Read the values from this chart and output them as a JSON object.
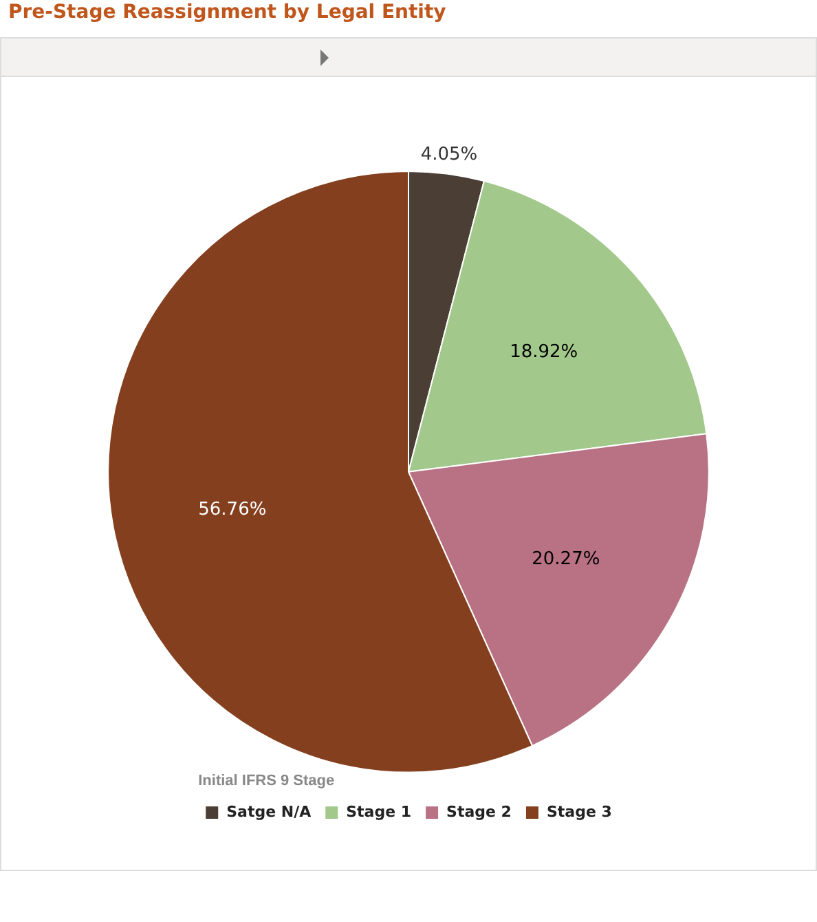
{
  "chart_data": {
    "type": "pie",
    "title": "Pre-Stage Reassignment by Legal Entity",
    "legend_title": "Initial IFRS 9 Stage",
    "categories": [
      "Satge N/A",
      "Stage 1",
      "Stage 2",
      "Stage 3"
    ],
    "values": [
      4.05,
      18.92,
      20.27,
      56.76
    ],
    "colors": [
      "#4b3e35",
      "#a2c98b",
      "#b87284",
      "#843f1e"
    ],
    "value_labels": [
      "4.05%",
      "18.92%",
      "20.27%",
      "56.76%"
    ],
    "legend": "bottom"
  }
}
